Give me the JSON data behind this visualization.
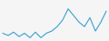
{
  "y": [
    8,
    6,
    9,
    5,
    8,
    4,
    9,
    4,
    8,
    10,
    14,
    20,
    30,
    24,
    18,
    14,
    22,
    10,
    18,
    28
  ],
  "line_color": "#3a9fd4",
  "linewidth": 0.8,
  "background_color": "#f5f5f5",
  "figsize": [
    1.2,
    0.45
  ],
  "dpi": 100
}
